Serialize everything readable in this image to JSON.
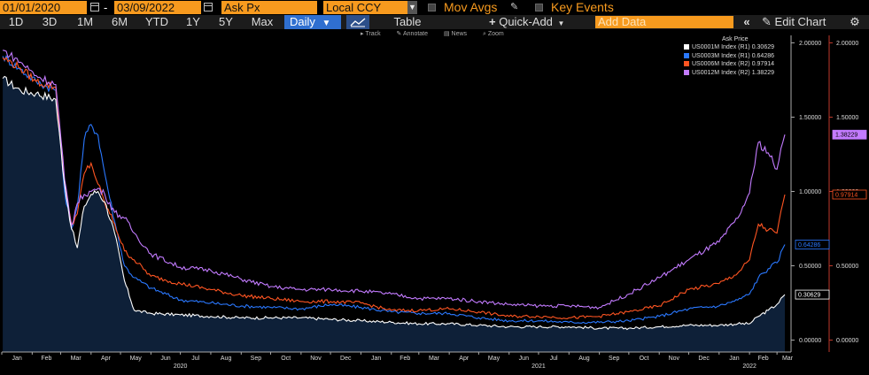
{
  "toolbar": {
    "start_date": "01/01/2020",
    "end_date": "03/09/2022",
    "field": "Ask Px",
    "currency": "Local CCY",
    "mov_avgs": "Mov Avgs",
    "key_events": "Key Events",
    "ranges": [
      "1D",
      "3D",
      "1M",
      "6M",
      "YTD",
      "1Y",
      "5Y",
      "Max"
    ],
    "frequency": "Daily",
    "table": "Table",
    "quick_add": "Quick-Add",
    "add_data_placeholder": "Add Data",
    "edit_chart": "Edit Chart",
    "tools": [
      "Track",
      "Annotate",
      "News",
      "Zoom"
    ]
  },
  "colors": {
    "accent": "#f79a1e",
    "series": [
      "#ffffff",
      "#2a78ff",
      "#ff5522",
      "#c37bff"
    ],
    "area_fill": "#0e2038"
  },
  "chart_data": {
    "type": "line",
    "title": "",
    "legend_title": "Ask Price",
    "legend_position": "top-right",
    "grid": false,
    "x_range": [
      "2020-01-01",
      "2022-03-09"
    ],
    "month_ticks": [
      "Jan",
      "Feb",
      "Mar",
      "Apr",
      "May",
      "Jun",
      "Jul",
      "Aug",
      "Sep",
      "Oct",
      "Nov",
      "Dec",
      "Jan",
      "Feb",
      "Mar",
      "Apr",
      "May",
      "Jun",
      "Jul",
      "Aug",
      "Sep",
      "Oct",
      "Nov",
      "Dec",
      "Jan",
      "Feb",
      "Mar"
    ],
    "year_labels": [
      "2020",
      "2021",
      "2022"
    ],
    "left_axis": {
      "ylim": [
        -0.08,
        2.05
      ],
      "ticks": [
        "0.00000",
        "0.50000",
        "1.00000",
        "1.50000",
        "2.00000"
      ]
    },
    "right_axis": {
      "ylim": [
        -0.08,
        2.05
      ],
      "ticks": [
        "0.00000",
        "0.50000",
        "1.00000",
        "1.50000",
        "2.00000"
      ]
    },
    "series": [
      {
        "name": "US0001M Index  (R1) 0.30629",
        "last_label": "0.30629",
        "axis": "R1",
        "filled": true,
        "points": [
          [
            "2020-01-02",
            1.76
          ],
          [
            "2020-01-20",
            1.68
          ],
          [
            "2020-02-05",
            1.66
          ],
          [
            "2020-02-25",
            1.62
          ],
          [
            "2020-03-05",
            1.05
          ],
          [
            "2020-03-12",
            0.75
          ],
          [
            "2020-03-18",
            0.62
          ],
          [
            "2020-03-25",
            0.9
          ],
          [
            "2020-04-01",
            0.98
          ],
          [
            "2020-04-08",
            1.0
          ],
          [
            "2020-04-15",
            0.93
          ],
          [
            "2020-04-25",
            0.72
          ],
          [
            "2020-05-05",
            0.4
          ],
          [
            "2020-05-15",
            0.2
          ],
          [
            "2020-06-01",
            0.18
          ],
          [
            "2020-07-01",
            0.17
          ],
          [
            "2020-08-01",
            0.16
          ],
          [
            "2020-09-01",
            0.15
          ],
          [
            "2020-10-01",
            0.15
          ],
          [
            "2020-11-01",
            0.15
          ],
          [
            "2020-12-01",
            0.14
          ],
          [
            "2021-01-01",
            0.13
          ],
          [
            "2021-02-01",
            0.12
          ],
          [
            "2021-03-01",
            0.11
          ],
          [
            "2021-04-01",
            0.11
          ],
          [
            "2021-05-01",
            0.1
          ],
          [
            "2021-06-01",
            0.09
          ],
          [
            "2021-07-01",
            0.09
          ],
          [
            "2021-08-01",
            0.09
          ],
          [
            "2021-09-01",
            0.08
          ],
          [
            "2021-10-01",
            0.08
          ],
          [
            "2021-11-01",
            0.09
          ],
          [
            "2021-12-01",
            0.1
          ],
          [
            "2022-01-01",
            0.1
          ],
          [
            "2022-01-20",
            0.11
          ],
          [
            "2022-02-01",
            0.11
          ],
          [
            "2022-02-10",
            0.16
          ],
          [
            "2022-02-20",
            0.2
          ],
          [
            "2022-03-01",
            0.24
          ],
          [
            "2022-03-09",
            0.30629
          ]
        ]
      },
      {
        "name": "US0003M Index  (R1) 0.64286",
        "last_label": "0.64286",
        "axis": "R1",
        "filled": false,
        "points": [
          [
            "2020-01-02",
            1.91
          ],
          [
            "2020-01-20",
            1.82
          ],
          [
            "2020-02-05",
            1.74
          ],
          [
            "2020-02-25",
            1.68
          ],
          [
            "2020-03-05",
            1.0
          ],
          [
            "2020-03-12",
            0.75
          ],
          [
            "2020-03-18",
            0.9
          ],
          [
            "2020-03-25",
            1.35
          ],
          [
            "2020-04-01",
            1.45
          ],
          [
            "2020-04-08",
            1.38
          ],
          [
            "2020-04-15",
            1.12
          ],
          [
            "2020-04-25",
            0.8
          ],
          [
            "2020-05-05",
            0.5
          ],
          [
            "2020-05-15",
            0.42
          ],
          [
            "2020-06-01",
            0.35
          ],
          [
            "2020-07-01",
            0.27
          ],
          [
            "2020-08-01",
            0.25
          ],
          [
            "2020-09-01",
            0.23
          ],
          [
            "2020-10-01",
            0.22
          ],
          [
            "2020-11-01",
            0.21
          ],
          [
            "2020-12-01",
            0.24
          ],
          [
            "2021-01-01",
            0.22
          ],
          [
            "2021-02-01",
            0.19
          ],
          [
            "2021-03-01",
            0.18
          ],
          [
            "2021-04-01",
            0.18
          ],
          [
            "2021-05-01",
            0.15
          ],
          [
            "2021-06-01",
            0.13
          ],
          [
            "2021-07-01",
            0.13
          ],
          [
            "2021-08-01",
            0.12
          ],
          [
            "2021-09-01",
            0.12
          ],
          [
            "2021-10-01",
            0.13
          ],
          [
            "2021-11-01",
            0.16
          ],
          [
            "2021-12-01",
            0.21
          ],
          [
            "2022-01-01",
            0.23
          ],
          [
            "2022-01-20",
            0.27
          ],
          [
            "2022-02-01",
            0.31
          ],
          [
            "2022-02-10",
            0.42
          ],
          [
            "2022-02-20",
            0.48
          ],
          [
            "2022-03-01",
            0.52
          ],
          [
            "2022-03-09",
            0.64286
          ]
        ]
      },
      {
        "name": "US0006M Index  (R2) 0.97914",
        "last_label": "0.97914",
        "axis": "R2",
        "filled": false,
        "points": [
          [
            "2020-01-02",
            1.9
          ],
          [
            "2020-01-20",
            1.83
          ],
          [
            "2020-02-05",
            1.74
          ],
          [
            "2020-02-25",
            1.7
          ],
          [
            "2020-03-05",
            1.05
          ],
          [
            "2020-03-12",
            0.78
          ],
          [
            "2020-03-18",
            0.85
          ],
          [
            "2020-03-25",
            1.12
          ],
          [
            "2020-04-01",
            1.19
          ],
          [
            "2020-04-08",
            1.05
          ],
          [
            "2020-04-15",
            0.92
          ],
          [
            "2020-04-25",
            0.78
          ],
          [
            "2020-05-05",
            0.6
          ],
          [
            "2020-05-15",
            0.54
          ],
          [
            "2020-06-01",
            0.43
          ],
          [
            "2020-07-01",
            0.38
          ],
          [
            "2020-08-01",
            0.34
          ],
          [
            "2020-09-01",
            0.3
          ],
          [
            "2020-10-01",
            0.28
          ],
          [
            "2020-11-01",
            0.26
          ],
          [
            "2020-12-01",
            0.26
          ],
          [
            "2021-01-01",
            0.25
          ],
          [
            "2021-02-01",
            0.2
          ],
          [
            "2021-03-01",
            0.2
          ],
          [
            "2021-04-01",
            0.21
          ],
          [
            "2021-05-01",
            0.19
          ],
          [
            "2021-06-01",
            0.16
          ],
          [
            "2021-07-01",
            0.16
          ],
          [
            "2021-08-01",
            0.15
          ],
          [
            "2021-09-01",
            0.16
          ],
          [
            "2021-10-01",
            0.19
          ],
          [
            "2021-11-01",
            0.23
          ],
          [
            "2021-12-01",
            0.34
          ],
          [
            "2022-01-01",
            0.38
          ],
          [
            "2022-01-20",
            0.45
          ],
          [
            "2022-02-01",
            0.54
          ],
          [
            "2022-02-10",
            0.78
          ],
          [
            "2022-02-20",
            0.74
          ],
          [
            "2022-03-01",
            0.72
          ],
          [
            "2022-03-09",
            0.97914
          ]
        ]
      },
      {
        "name": "US0012M Index  (R2) 1.38229",
        "last_label": "1.38229",
        "axis": "R2",
        "filled": false,
        "points": [
          [
            "2020-01-02",
            1.95
          ],
          [
            "2020-01-20",
            1.87
          ],
          [
            "2020-02-05",
            1.78
          ],
          [
            "2020-02-25",
            1.72
          ],
          [
            "2020-03-05",
            1.08
          ],
          [
            "2020-03-12",
            0.77
          ],
          [
            "2020-03-18",
            0.92
          ],
          [
            "2020-03-25",
            0.98
          ],
          [
            "2020-04-01",
            1.0
          ],
          [
            "2020-04-08",
            1.02
          ],
          [
            "2020-04-15",
            0.98
          ],
          [
            "2020-04-25",
            0.86
          ],
          [
            "2020-05-05",
            0.82
          ],
          [
            "2020-05-15",
            0.72
          ],
          [
            "2020-06-01",
            0.58
          ],
          [
            "2020-07-01",
            0.49
          ],
          [
            "2020-08-01",
            0.47
          ],
          [
            "2020-09-01",
            0.41
          ],
          [
            "2020-10-01",
            0.36
          ],
          [
            "2020-11-01",
            0.34
          ],
          [
            "2020-12-01",
            0.34
          ],
          [
            "2021-01-01",
            0.33
          ],
          [
            "2021-02-01",
            0.31
          ],
          [
            "2021-03-01",
            0.28
          ],
          [
            "2021-04-01",
            0.28
          ],
          [
            "2021-05-01",
            0.26
          ],
          [
            "2021-06-01",
            0.24
          ],
          [
            "2021-07-01",
            0.23
          ],
          [
            "2021-08-01",
            0.23
          ],
          [
            "2021-09-01",
            0.22
          ],
          [
            "2021-10-01",
            0.31
          ],
          [
            "2021-11-01",
            0.42
          ],
          [
            "2021-12-01",
            0.54
          ],
          [
            "2022-01-01",
            0.66
          ],
          [
            "2022-01-20",
            0.82
          ],
          [
            "2022-02-01",
            0.99
          ],
          [
            "2022-02-10",
            1.33
          ],
          [
            "2022-02-20",
            1.26
          ],
          [
            "2022-03-01",
            1.15
          ],
          [
            "2022-03-09",
            1.38229
          ]
        ]
      }
    ]
  }
}
